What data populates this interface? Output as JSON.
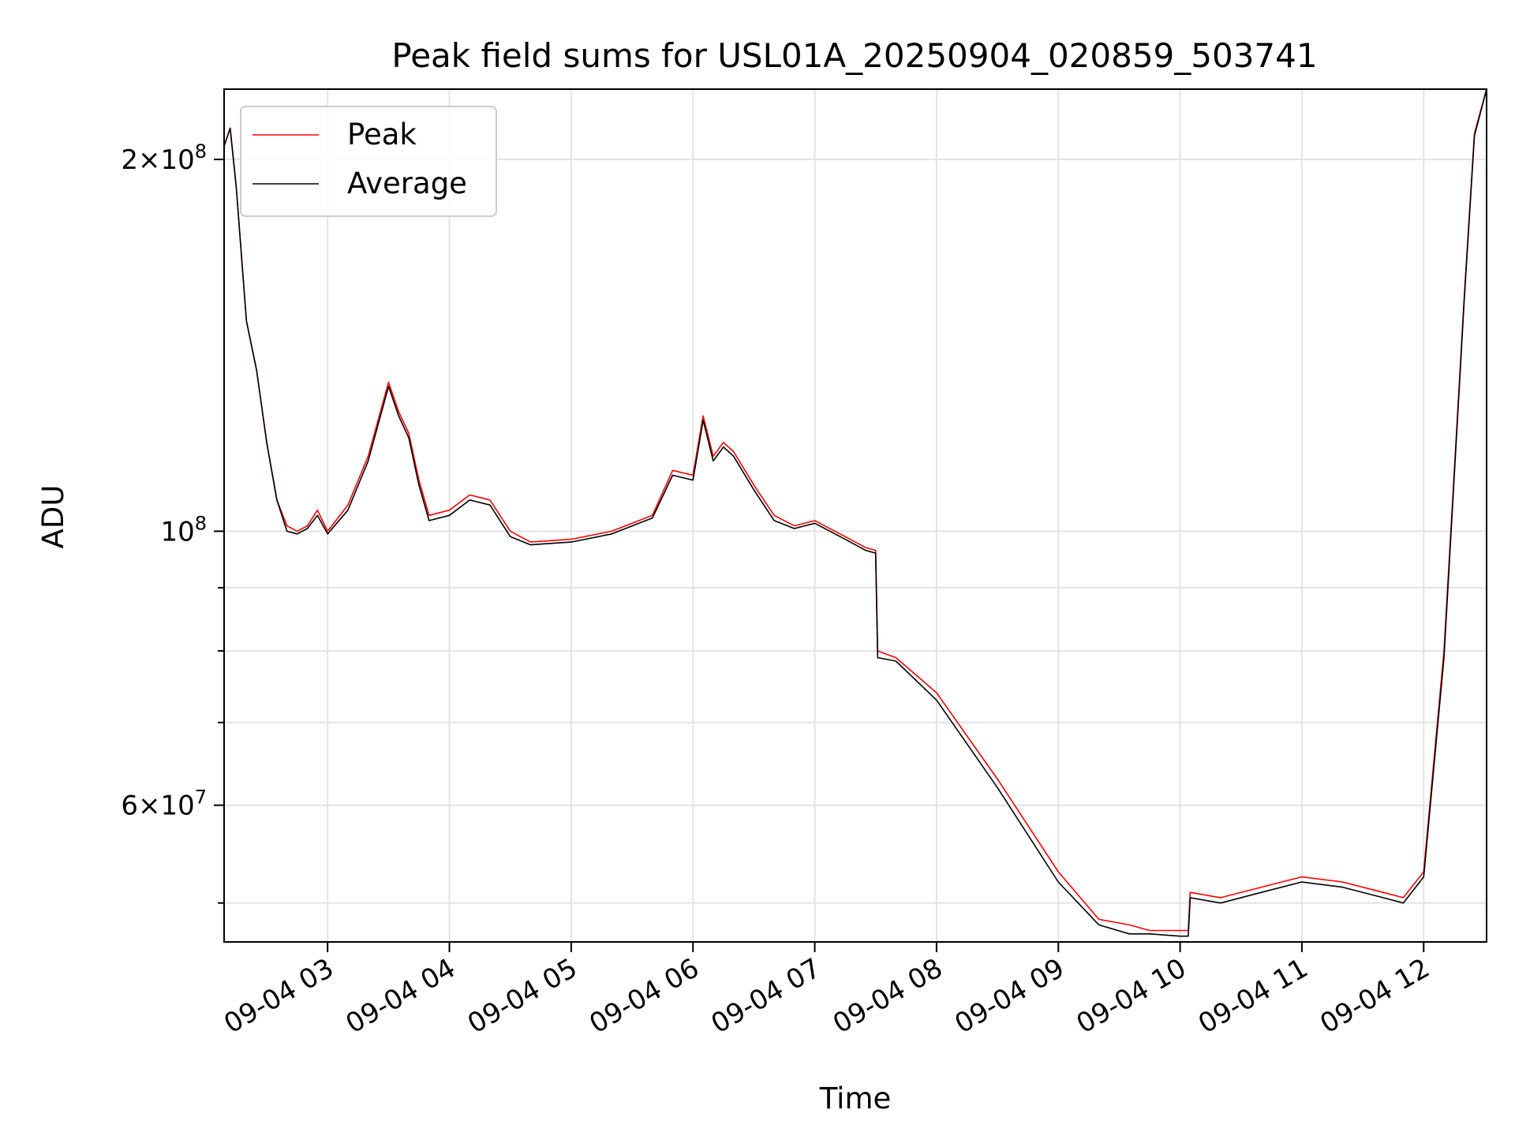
{
  "chart_data": {
    "type": "line",
    "title": "Peak field sums for USL01A_20250904_020859_503741",
    "xlabel": "Time",
    "ylabel": "ADU",
    "yscale": "log",
    "xlim": [
      "09-04 02:09",
      "09-04 12:31"
    ],
    "ylim": [
      46500000,
      228000000
    ],
    "grid": true,
    "legend_position": "upper-left",
    "x_ticks": [
      "09-04 03",
      "09-04 04",
      "09-04 05",
      "09-04 06",
      "09-04 07",
      "09-04 08",
      "09-04 09",
      "09-04 10",
      "09-04 11",
      "09-04 12"
    ],
    "y_ticks_labeled": [
      {
        "value": 200000000,
        "mantissa": "2",
        "base": "×10",
        "exp": "8"
      },
      {
        "value": 100000000,
        "mantissa": "",
        "base": "10",
        "exp": "8"
      },
      {
        "value": 60000000,
        "mantissa": "6",
        "base": "×10",
        "exp": "7"
      }
    ],
    "y_ticks_minor": [
      50000000,
      70000000,
      80000000,
      90000000
    ],
    "x": [
      "02:09",
      "02:12",
      "02:15",
      "02:20",
      "02:25",
      "02:30",
      "02:35",
      "02:40",
      "02:45",
      "02:50",
      "02:55",
      "03:00",
      "03:10",
      "03:20",
      "03:30",
      "03:35",
      "03:40",
      "03:45",
      "03:50",
      "04:00",
      "04:10",
      "04:20",
      "04:30",
      "04:40",
      "05:00",
      "05:20",
      "05:40",
      "05:50",
      "06:00",
      "06:05",
      "06:10",
      "06:15",
      "06:20",
      "06:30",
      "06:40",
      "06:50",
      "07:00",
      "07:15",
      "07:25",
      "07:30",
      "07:31",
      "07:40",
      "08:00",
      "08:30",
      "09:00",
      "09:20",
      "09:35",
      "09:45",
      "10:00",
      "10:04",
      "10:05",
      "10:20",
      "10:40",
      "11:00",
      "11:20",
      "11:40",
      "11:50",
      "12:00",
      "12:10",
      "12:20",
      "12:25",
      "12:31"
    ],
    "series": [
      {
        "name": "Peak",
        "color": "#ff0000",
        "values": [
          205,
          212,
          190,
          148,
          135,
          118,
          106,
          101,
          100,
          101,
          104,
          100,
          105,
          115,
          132,
          125,
          120,
          110,
          103,
          104,
          107,
          106,
          100,
          98,
          98.5,
          100,
          103,
          112,
          111,
          124,
          115,
          118,
          116,
          109,
          103,
          101,
          102,
          99,
          97,
          96.5,
          80,
          79,
          74,
          63,
          53,
          48.5,
          48,
          47.5,
          47.5,
          47.5,
          51,
          50.5,
          51.5,
          52.5,
          52,
          51,
          50.5,
          53,
          80,
          155,
          210,
          228
        ]
      },
      {
        "name": "Average",
        "color": "#000000",
        "values": [
          205,
          212,
          190,
          148,
          135,
          118,
          106,
          100,
          99.5,
          100.5,
          103,
          99.5,
          104,
          114,
          131,
          124,
          119,
          109,
          102,
          103,
          106,
          105,
          99,
          97.5,
          98,
          99.5,
          102.5,
          111,
          110,
          123,
          114,
          117,
          115,
          108,
          102,
          100.5,
          101.5,
          98.5,
          96.5,
          96,
          79,
          78.5,
          73,
          62,
          52,
          48,
          47.2,
          47.2,
          47,
          47,
          50.5,
          50,
          51,
          52,
          51.5,
          50.5,
          50,
          52.5,
          79,
          154,
          209,
          228
        ]
      }
    ]
  }
}
